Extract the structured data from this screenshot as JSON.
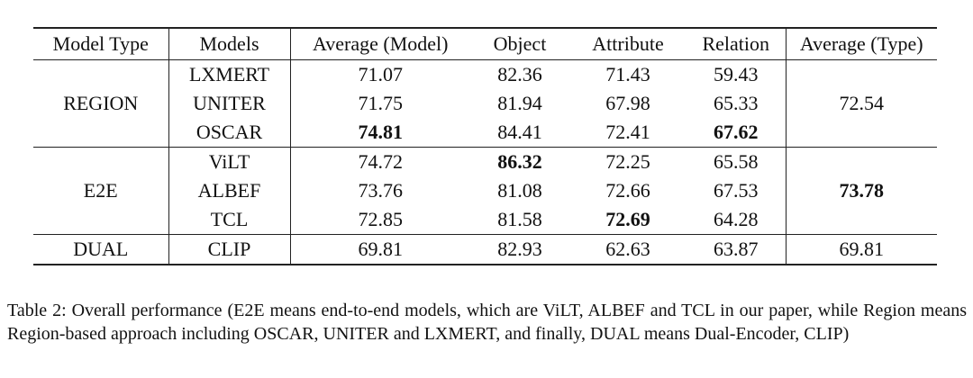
{
  "table": {
    "headers": [
      "Model Type",
      "Models",
      "Average (Model)",
      "Object",
      "Attribute",
      "Relation",
      "Average (Type)"
    ],
    "groups": [
      {
        "type": "REGION",
        "average_type": "72.54",
        "rows": [
          {
            "model": "LXMERT",
            "avg": "71.07",
            "object": "82.36",
            "attribute": "71.43",
            "relation": "59.43"
          },
          {
            "model": "UNITER",
            "avg": "71.75",
            "object": "81.94",
            "attribute": "67.98",
            "relation": "65.33"
          },
          {
            "model": "OSCAR",
            "avg": "74.81",
            "object": "84.41",
            "attribute": "72.41",
            "relation": "67.62"
          }
        ]
      },
      {
        "type": "E2E",
        "average_type": "73.78",
        "rows": [
          {
            "model": "ViLT",
            "avg": "74.72",
            "object": "86.32",
            "attribute": "72.25",
            "relation": "65.58"
          },
          {
            "model": "ALBEF",
            "avg": "73.76",
            "object": "81.08",
            "attribute": "72.66",
            "relation": "67.53"
          },
          {
            "model": "TCL",
            "avg": "72.85",
            "object": "81.58",
            "attribute": "72.69",
            "relation": "64.28"
          }
        ]
      },
      {
        "type": "DUAL",
        "average_type": "69.81",
        "rows": [
          {
            "model": "CLIP",
            "avg": "69.81",
            "object": "82.93",
            "attribute": "62.63",
            "relation": "63.87"
          }
        ]
      }
    ]
  },
  "caption": "Table 2: Overall performance (E2E means end-to-end models, which are ViLT, ALBEF and TCL in our paper, while Region means Region-based approach including OSCAR, UNITER and LXMERT, and finally, DUAL means Dual-Encoder, CLIP)"
}
